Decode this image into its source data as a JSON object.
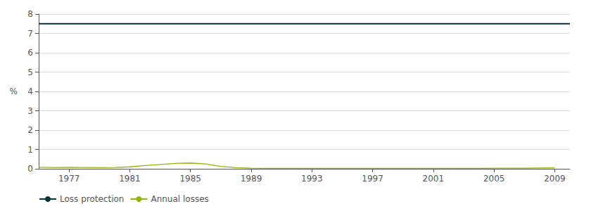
{
  "chart_data": {
    "type": "line",
    "ylabel": "%",
    "x": [
      1975,
      1976,
      1977,
      1978,
      1979,
      1980,
      1981,
      1982,
      1983,
      1984,
      1985,
      1986,
      1987,
      1988,
      1989,
      1990,
      1991,
      1992,
      1993,
      1994,
      1995,
      1996,
      1997,
      1998,
      1999,
      2000,
      2001,
      2002,
      2003,
      2004,
      2005,
      2006,
      2007,
      2008,
      2009
    ],
    "series": [
      {
        "name": "Loss protection",
        "color": "#003333",
        "x": [
          1975,
          2010
        ],
        "values": [
          7.5,
          7.5
        ]
      },
      {
        "name": "Annual losses",
        "color": "#8db600",
        "values": [
          0.08,
          0.07,
          0.08,
          0.07,
          0.06,
          0.07,
          0.1,
          0.17,
          0.22,
          0.28,
          0.3,
          0.25,
          0.12,
          0.06,
          0.03,
          0.02,
          0.02,
          0.02,
          0.02,
          0.02,
          0.02,
          0.02,
          0.02,
          0.02,
          0.02,
          0.02,
          0.02,
          0.02,
          0.02,
          0.02,
          0.03,
          0.03,
          0.03,
          0.04,
          0.05
        ]
      }
    ],
    "xlim": [
      1975,
      2010
    ],
    "xticks": [
      1977,
      1981,
      1985,
      1989,
      1993,
      1997,
      2001,
      2005,
      2009
    ],
    "ylim": [
      0,
      8
    ],
    "yticks": [
      0,
      1,
      2,
      3,
      4,
      5,
      6,
      7,
      8
    ],
    "grid": true,
    "legend": "lower-left"
  }
}
